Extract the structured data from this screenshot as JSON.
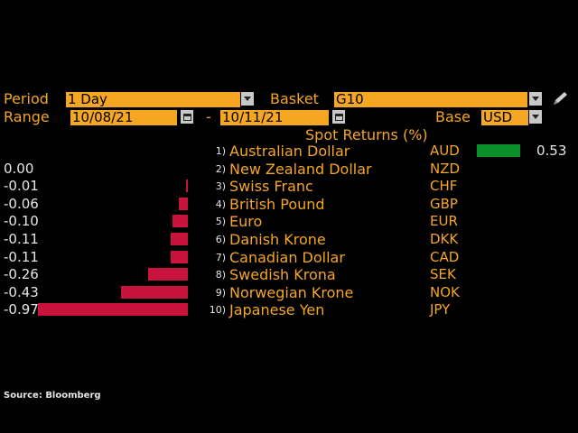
{
  "controls": {
    "period_label": "Period",
    "period_value": "1 Day",
    "basket_label": "Basket",
    "basket_value": "G10",
    "range_label": "Range",
    "range_start": "10/08/21",
    "range_sep": "-",
    "range_end": "10/11/21",
    "base_label": "Base",
    "base_value": "USD"
  },
  "header": {
    "title": "Spot Returns (%)"
  },
  "colors": {
    "positive": "#0a8f2a",
    "negative": "#c8143c",
    "accent": "#f5a623"
  },
  "rows": [
    {
      "rank": "1)",
      "name": "Australian Dollar",
      "code": "AUD",
      "value": 0.53,
      "label": "0.53"
    },
    {
      "rank": "2)",
      "name": "New Zealand Dollar",
      "code": "NZD",
      "value": 0.0,
      "label": "0.00"
    },
    {
      "rank": "3)",
      "name": "Swiss Franc",
      "code": "CHF",
      "value": -0.01,
      "label": "-0.01"
    },
    {
      "rank": "4)",
      "name": "British Pound",
      "code": "GBP",
      "value": -0.06,
      "label": "-0.06"
    },
    {
      "rank": "5)",
      "name": "Euro",
      "code": "EUR",
      "value": -0.1,
      "label": "-0.10"
    },
    {
      "rank": "6)",
      "name": "Danish Krone",
      "code": "DKK",
      "value": -0.11,
      "label": "-0.11"
    },
    {
      "rank": "7)",
      "name": "Canadian Dollar",
      "code": "CAD",
      "value": -0.11,
      "label": "-0.11"
    },
    {
      "rank": "8)",
      "name": "Swedish Krona",
      "code": "SEK",
      "value": -0.26,
      "label": "-0.26"
    },
    {
      "rank": "9)",
      "name": "Norwegian Krone",
      "code": "NOK",
      "value": -0.43,
      "label": "-0.43"
    },
    {
      "rank": "10)",
      "name": "Japanese Yen",
      "code": "JPY",
      "value": -0.97,
      "label": "-0.97"
    }
  ],
  "source": "Source: Bloomberg"
}
